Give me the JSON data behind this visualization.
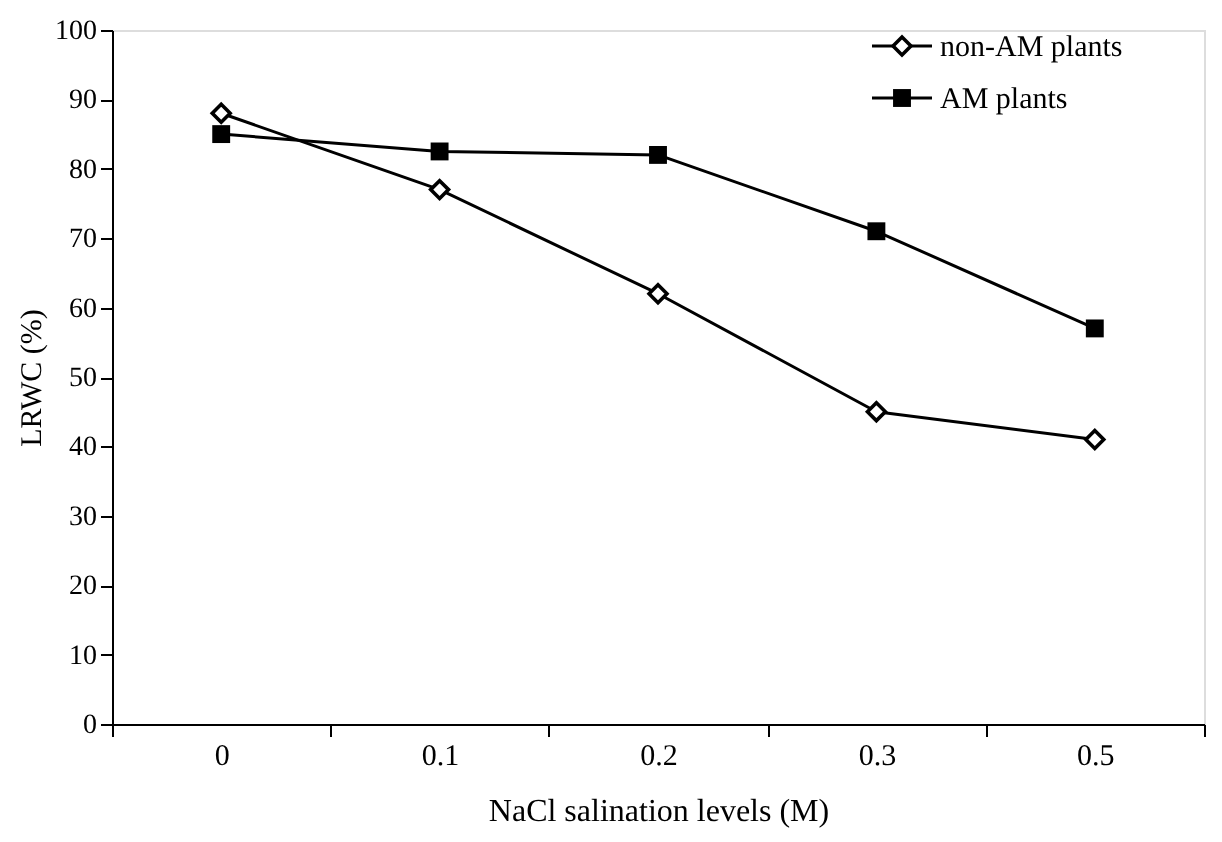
{
  "chart_data": {
    "type": "line",
    "xlabel": "NaCl salination levels (M)",
    "ylabel": "LRWC (%)",
    "categories": [
      "0",
      "0.1",
      "0.2",
      "0.3",
      "0.5"
    ],
    "series": [
      {
        "name": "non-AM plants",
        "color": "#000000",
        "marker": "diamond",
        "values": [
          88,
          77,
          62,
          45,
          41
        ]
      },
      {
        "name": "AM plants",
        "color": "#000000",
        "marker": "square",
        "values": [
          85,
          82.5,
          82,
          71,
          57
        ]
      }
    ],
    "ylim": [
      0,
      100
    ],
    "yticks": [
      0,
      10,
      20,
      30,
      40,
      50,
      60,
      70,
      80,
      90,
      100
    ],
    "grid": false,
    "legend": "top right",
    "line_style": "solid"
  }
}
